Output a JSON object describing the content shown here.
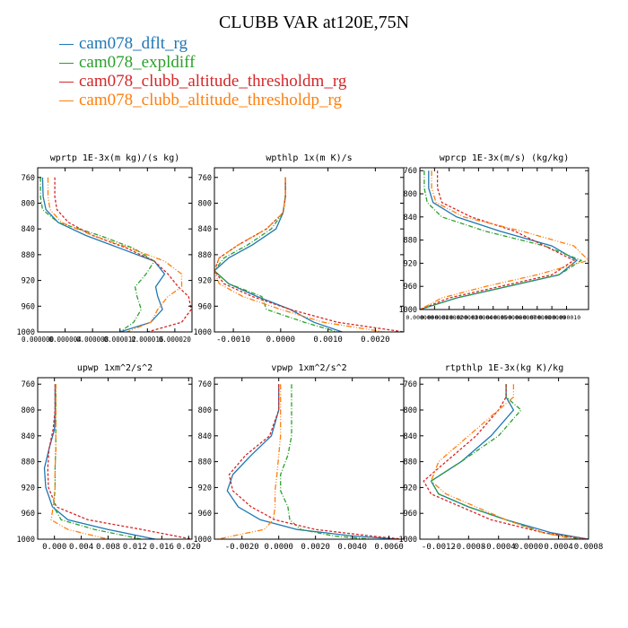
{
  "title": "CLUBB VAR at120E,75N",
  "legend": [
    {
      "label": "cam078_dflt_rg",
      "color": "#1f77b4"
    },
    {
      "label": "cam078_expldiff",
      "color": "#2ca02c"
    },
    {
      "label": "cam078_clubb_altitude_thresholdm_rg",
      "color": "#d62728"
    },
    {
      "label": "cam078_clubb_altitude_thresholdp_rg",
      "color": "#ff7f0e"
    }
  ],
  "chart_data": [
    {
      "type": "line",
      "title": "wprtp  1E-3x(m kg)/(s kg)",
      "xlim": [
        0,
        2.25e-05
      ],
      "xticks": [
        0,
        4e-06,
        8e-06,
        1.2e-05,
        1.6e-05,
        2e-05
      ],
      "xticklabels": [
        "0.000000",
        "0.000004",
        "0.000008",
        "0.000012",
        "0.000016",
        "0.000020"
      ],
      "ylim": [
        1000,
        745
      ],
      "yticks": [
        760,
        800,
        840,
        880,
        920,
        960,
        1000
      ],
      "yticklabels": [
        "760",
        "800",
        "840",
        "880",
        "920",
        "960",
        "1000"
      ],
      "series": [
        {
          "name": "cam078_dflt_rg",
          "x": [
            7e-07,
            8e-07,
            1.2e-06,
            3e-06,
            7e-06,
            1.2e-05,
            1.7e-05,
            1.85e-05,
            1.72e-05,
            1.75e-05,
            1.82e-05,
            1.65e-05,
            1.2e-05
          ],
          "y": [
            760,
            790,
            810,
            830,
            850,
            870,
            890,
            910,
            930,
            945,
            965,
            985,
            1000
          ]
        },
        {
          "name": "cam078_expldiff",
          "x": [
            4e-07,
            4e-07,
            7e-07,
            3e-06,
            9e-06,
            1.4e-05,
            1.7e-05,
            1.58e-05,
            1.42e-05,
            1.45e-05,
            1.51e-05,
            1.4e-05,
            1.2e-05
          ],
          "y": [
            760,
            790,
            810,
            830,
            850,
            870,
            890,
            910,
            930,
            945,
            965,
            985,
            1000
          ]
        },
        {
          "name": "cam078_clubb_altitude_thresholdm_rg",
          "x": [
            2.5e-06,
            2.5e-06,
            2.8e-06,
            4.5e-06,
            8e-06,
            1.3e-05,
            1.7e-05,
            1.9e-05,
            2.05e-05,
            2.2e-05,
            2.24e-05,
            2.1e-05,
            1.6e-05
          ],
          "y": [
            760,
            790,
            810,
            830,
            850,
            870,
            890,
            910,
            930,
            945,
            965,
            985,
            1000
          ]
        },
        {
          "name": "cam078_clubb_altitude_thresholdp_rg",
          "x": [
            1.5e-06,
            1.5e-06,
            1.8e-06,
            3.5e-06,
            8e-06,
            1.35e-05,
            1.85e-05,
            2.1e-05,
            2.1e-05,
            1.9e-05,
            1.75e-05,
            1.65e-05,
            1.3e-05
          ],
          "y": [
            760,
            790,
            810,
            830,
            850,
            870,
            890,
            910,
            930,
            945,
            965,
            985,
            1000
          ]
        }
      ]
    },
    {
      "type": "line",
      "title": "wpthlp  1x(m K)/s",
      "xlim": [
        -0.0014,
        0.0026
      ],
      "xticks": [
        -0.001,
        0,
        0.001,
        0.002
      ],
      "xticklabels": [
        "-0.0010",
        "0.0000",
        "0.0010",
        "0.0020"
      ],
      "ylim": [
        1000,
        745
      ],
      "yticks": [
        760,
        800,
        840,
        880,
        920,
        960,
        1000
      ],
      "yticklabels": [
        "760",
        "800",
        "840",
        "880",
        "920",
        "960",
        "1000"
      ],
      "series": [
        {
          "name": "cam078_dflt_rg",
          "x": [
            0.0001,
            0.0001,
            5e-05,
            -0.0001,
            -0.0006,
            -0.0011,
            -0.0014,
            -0.0011,
            -0.0005,
            0.0002,
            0.0007,
            0.0013
          ],
          "y": [
            760,
            790,
            815,
            840,
            865,
            885,
            905,
            925,
            945,
            965,
            985,
            1000
          ]
        },
        {
          "name": "cam078_expldiff",
          "x": [
            0.0001,
            0.0001,
            5e-05,
            -0.0002,
            -0.0007,
            -0.0012,
            -0.0014,
            -0.0011,
            -0.0004,
            -0.0003,
            0.0005,
            0.0012
          ],
          "y": [
            760,
            790,
            815,
            840,
            865,
            885,
            905,
            925,
            945,
            965,
            985,
            1000
          ]
        },
        {
          "name": "cam078_clubb_altitude_thresholdm_rg",
          "x": [
            0.0001,
            0.0001,
            5e-05,
            -0.0003,
            -0.0009,
            -0.0013,
            -0.0014,
            -0.0012,
            -0.0006,
            0.0002,
            0.0012,
            0.0026
          ],
          "y": [
            760,
            790,
            815,
            840,
            865,
            885,
            905,
            925,
            945,
            965,
            985,
            1000
          ]
        },
        {
          "name": "cam078_clubb_altitude_thresholdp_rg",
          "x": [
            0.0001,
            0.0001,
            5e-05,
            -0.0003,
            -0.0009,
            -0.0013,
            -0.0014,
            -0.0013,
            -0.0008,
            0.0,
            0.0009,
            0.0022
          ],
          "y": [
            760,
            790,
            815,
            840,
            865,
            885,
            905,
            925,
            945,
            965,
            985,
            1000
          ]
        }
      ]
    },
    {
      "type": "line",
      "title": "wprcp  1E-3x(m/s) (kg/kg)",
      "xlim": [
        0,
        1.15e-05
      ],
      "xticks": [
        0,
        1e-06,
        2e-06,
        3e-06,
        4e-06,
        5e-06,
        6e-06,
        7e-06,
        8e-06,
        9e-06,
        1e-05
      ],
      "xticklabels": [
        "0.000000",
        "0.000001",
        "0.000002",
        "0.000003",
        "0.000004",
        "0.000005",
        "0.000006",
        "0.000007",
        "0.000008",
        "0.000009",
        "0.000010"
      ],
      "ylim": [
        1000,
        755
      ],
      "yticks": [
        760,
        800,
        840,
        880,
        920,
        960,
        1000
      ],
      "yticklabels": [
        "760",
        "800",
        "840",
        "880",
        "920",
        "960",
        "1000"
      ],
      "series": [
        {
          "name": "cam078_dflt_rg",
          "x": [
            6e-07,
            6e-07,
            9e-07,
            2.5e-06,
            5.5e-06,
            9e-06,
            1.07e-05,
            9.5e-06,
            6e-06,
            2.5e-06,
            0
          ],
          "y": [
            760,
            790,
            815,
            840,
            865,
            890,
            915,
            940,
            960,
            980,
            1000
          ]
        },
        {
          "name": "cam078_expldiff",
          "x": [
            3e-07,
            3e-07,
            5e-07,
            1.5e-06,
            4.5e-06,
            8.5e-06,
            1.1e-05,
            9.5e-06,
            6e-06,
            2.5e-06,
            0
          ],
          "y": [
            760,
            790,
            815,
            840,
            865,
            890,
            915,
            940,
            960,
            980,
            1000
          ]
        },
        {
          "name": "cam078_clubb_altitude_thresholdm_rg",
          "x": [
            1.2e-06,
            1.2e-06,
            1.5e-06,
            3.5e-06,
            6.5e-06,
            8.5e-06,
            1.05e-05,
            9e-06,
            5.5e-06,
            2e-06,
            0
          ],
          "y": [
            760,
            790,
            815,
            840,
            865,
            890,
            915,
            940,
            960,
            980,
            1000
          ]
        },
        {
          "name": "cam078_clubb_altitude_thresholdp_rg",
          "x": [
            8e-07,
            8e-07,
            1.1e-06,
            3e-06,
            7e-06,
            1.05e-05,
            1.15e-05,
            8e-06,
            4.5e-06,
            1.5e-06,
            0
          ],
          "y": [
            760,
            790,
            815,
            840,
            865,
            890,
            915,
            940,
            960,
            980,
            1000
          ]
        }
      ]
    },
    {
      "type": "line",
      "title": "upwp  1xm^2/s^2",
      "xlim": [
        -0.0025,
        0.0205
      ],
      "xticks": [
        0,
        0.004,
        0.008,
        0.012,
        0.016,
        0.02
      ],
      "xticklabels": [
        "0.000",
        "0.004",
        "0.008",
        "0.012",
        "0.016",
        "0.020"
      ],
      "ylim": [
        1000,
        750
      ],
      "yticks": [
        760,
        800,
        840,
        880,
        920,
        960,
        1000
      ],
      "yticklabels": [
        "760",
        "800",
        "840",
        "880",
        "920",
        "960",
        "1000"
      ],
      "series": [
        {
          "name": "cam078_dflt_rg",
          "x": [
            0.0001,
            0.0001,
            0.0,
            -0.0008,
            -0.0015,
            -0.0013,
            -0.0003,
            0.002,
            0.008,
            0.015
          ],
          "y": [
            760,
            800,
            830,
            860,
            890,
            920,
            950,
            970,
            985,
            1000
          ]
        },
        {
          "name": "cam078_expldiff",
          "x": [
            0.0002,
            0.0002,
            0.0002,
            0.0002,
            0.0001,
            0.0001,
            -0.0001,
            0.001,
            0.006,
            0.013
          ],
          "y": [
            760,
            800,
            830,
            860,
            890,
            920,
            950,
            970,
            985,
            1000
          ]
        },
        {
          "name": "cam078_clubb_altitude_thresholdm_rg",
          "x": [
            0.0001,
            0.0001,
            -0.0002,
            -0.0008,
            -0.001,
            -0.0009,
            0.0003,
            0.005,
            0.013,
            0.0205
          ],
          "y": [
            760,
            800,
            830,
            860,
            890,
            920,
            950,
            970,
            985,
            1000
          ]
        },
        {
          "name": "cam078_clubb_altitude_thresholdp_rg",
          "x": [
            0.0002,
            0.0002,
            0.0002,
            0.0002,
            0.0001,
            0.0001,
            -0.0002,
            -0.0005,
            0.002,
            0.008
          ],
          "y": [
            760,
            800,
            830,
            860,
            890,
            920,
            950,
            970,
            985,
            1000
          ]
        }
      ]
    },
    {
      "type": "line",
      "title": "vpwp  1xm^2/s^2",
      "xlim": [
        -0.0035,
        0.0068
      ],
      "xticks": [
        -0.002,
        0,
        0.002,
        0.004,
        0.006
      ],
      "xticklabels": [
        "-0.0020",
        "0.0000",
        "0.0020",
        "0.0040",
        "0.0060"
      ],
      "ylim": [
        1000,
        750
      ],
      "yticks": [
        760,
        800,
        840,
        880,
        920,
        960,
        1000
      ],
      "yticklabels": [
        "760",
        "800",
        "840",
        "880",
        "920",
        "960",
        "1000"
      ],
      "series": [
        {
          "name": "cam078_dflt_rg",
          "x": [
            0.0,
            0.0,
            -0.0004,
            -0.0015,
            -0.0025,
            -0.0028,
            -0.0022,
            -0.001,
            0.001,
            0.004,
            0.0065
          ],
          "y": [
            760,
            800,
            840,
            870,
            900,
            925,
            950,
            970,
            985,
            995,
            1000
          ]
        },
        {
          "name": "cam078_expldiff",
          "x": [
            0.0007,
            0.0007,
            0.0007,
            0.0005,
            0.0001,
            0.0001,
            0.0005,
            0.0006,
            0.0012,
            0.003,
            0.005
          ],
          "y": [
            760,
            800,
            840,
            870,
            900,
            925,
            950,
            970,
            985,
            995,
            1000
          ]
        },
        {
          "name": "cam078_clubb_altitude_thresholdm_rg",
          "x": [
            0.0,
            0.0,
            -0.0005,
            -0.0018,
            -0.0027,
            -0.0025,
            -0.0015,
            -0.0002,
            0.002,
            0.005,
            0.0068
          ],
          "y": [
            760,
            800,
            840,
            870,
            900,
            925,
            950,
            970,
            985,
            995,
            1000
          ]
        },
        {
          "name": "cam078_clubb_altitude_thresholdp_rg",
          "x": [
            0.0001,
            0.0001,
            0.0001,
            0.0,
            -0.0001,
            -0.0002,
            -0.0002,
            -0.0003,
            -0.0008,
            -0.0025,
            -0.0033
          ],
          "y": [
            760,
            800,
            840,
            870,
            900,
            925,
            950,
            970,
            985,
            995,
            1000
          ]
        }
      ]
    },
    {
      "type": "line",
      "title": "rtpthlp  1E-3x(kg K)/kg",
      "xlim": [
        -0.00145,
        0.0008
      ],
      "xticks": [
        -0.0012,
        -0.0008,
        -0.0004,
        0,
        0.0004,
        0.0008
      ],
      "xticklabels": [
        "-0.0012",
        "-0.0008",
        "-0.0004",
        "0.0000",
        "0.0004",
        "0.0008"
      ],
      "ylim": [
        1000,
        750
      ],
      "yticks": [
        760,
        800,
        840,
        880,
        920,
        960,
        1000
      ],
      "yticklabels": [
        "760",
        "800",
        "840",
        "880",
        "920",
        "960",
        "1000"
      ],
      "series": [
        {
          "name": "cam078_dflt_rg",
          "x": [
            -0.0003,
            -0.0003,
            -0.0002,
            -0.0005,
            -0.0009,
            -0.0013,
            -0.0012,
            -0.0008,
            -0.0003,
            0.0003,
            0.0008
          ],
          "y": [
            760,
            780,
            800,
            840,
            880,
            910,
            930,
            950,
            970,
            990,
            1000
          ]
        },
        {
          "name": "cam078_expldiff",
          "x": [
            -0.0003,
            -0.0003,
            -0.0001,
            -0.0004,
            -0.0009,
            -0.0013,
            -0.0012,
            -0.0008,
            -0.0003,
            0.0002,
            0.0007
          ],
          "y": [
            760,
            780,
            800,
            840,
            880,
            910,
            930,
            950,
            970,
            990,
            1000
          ]
        },
        {
          "name": "cam078_clubb_altitude_thresholdm_rg",
          "x": [
            -0.0003,
            -0.0003,
            -0.0004,
            -0.0007,
            -0.0011,
            -0.0014,
            -0.0013,
            -0.0009,
            -0.0005,
            0.0002,
            0.0008
          ],
          "y": [
            760,
            780,
            800,
            840,
            880,
            910,
            930,
            950,
            970,
            990,
            1000
          ]
        },
        {
          "name": "cam078_clubb_altitude_thresholdp_rg",
          "x": [
            -0.0002,
            -0.0002,
            -0.0004,
            -0.0008,
            -0.0012,
            -0.0013,
            -0.0011,
            -0.0007,
            -0.0003,
            0.0002,
            0.0006
          ],
          "y": [
            760,
            780,
            800,
            840,
            880,
            910,
            930,
            950,
            970,
            990,
            1000
          ]
        }
      ]
    }
  ]
}
